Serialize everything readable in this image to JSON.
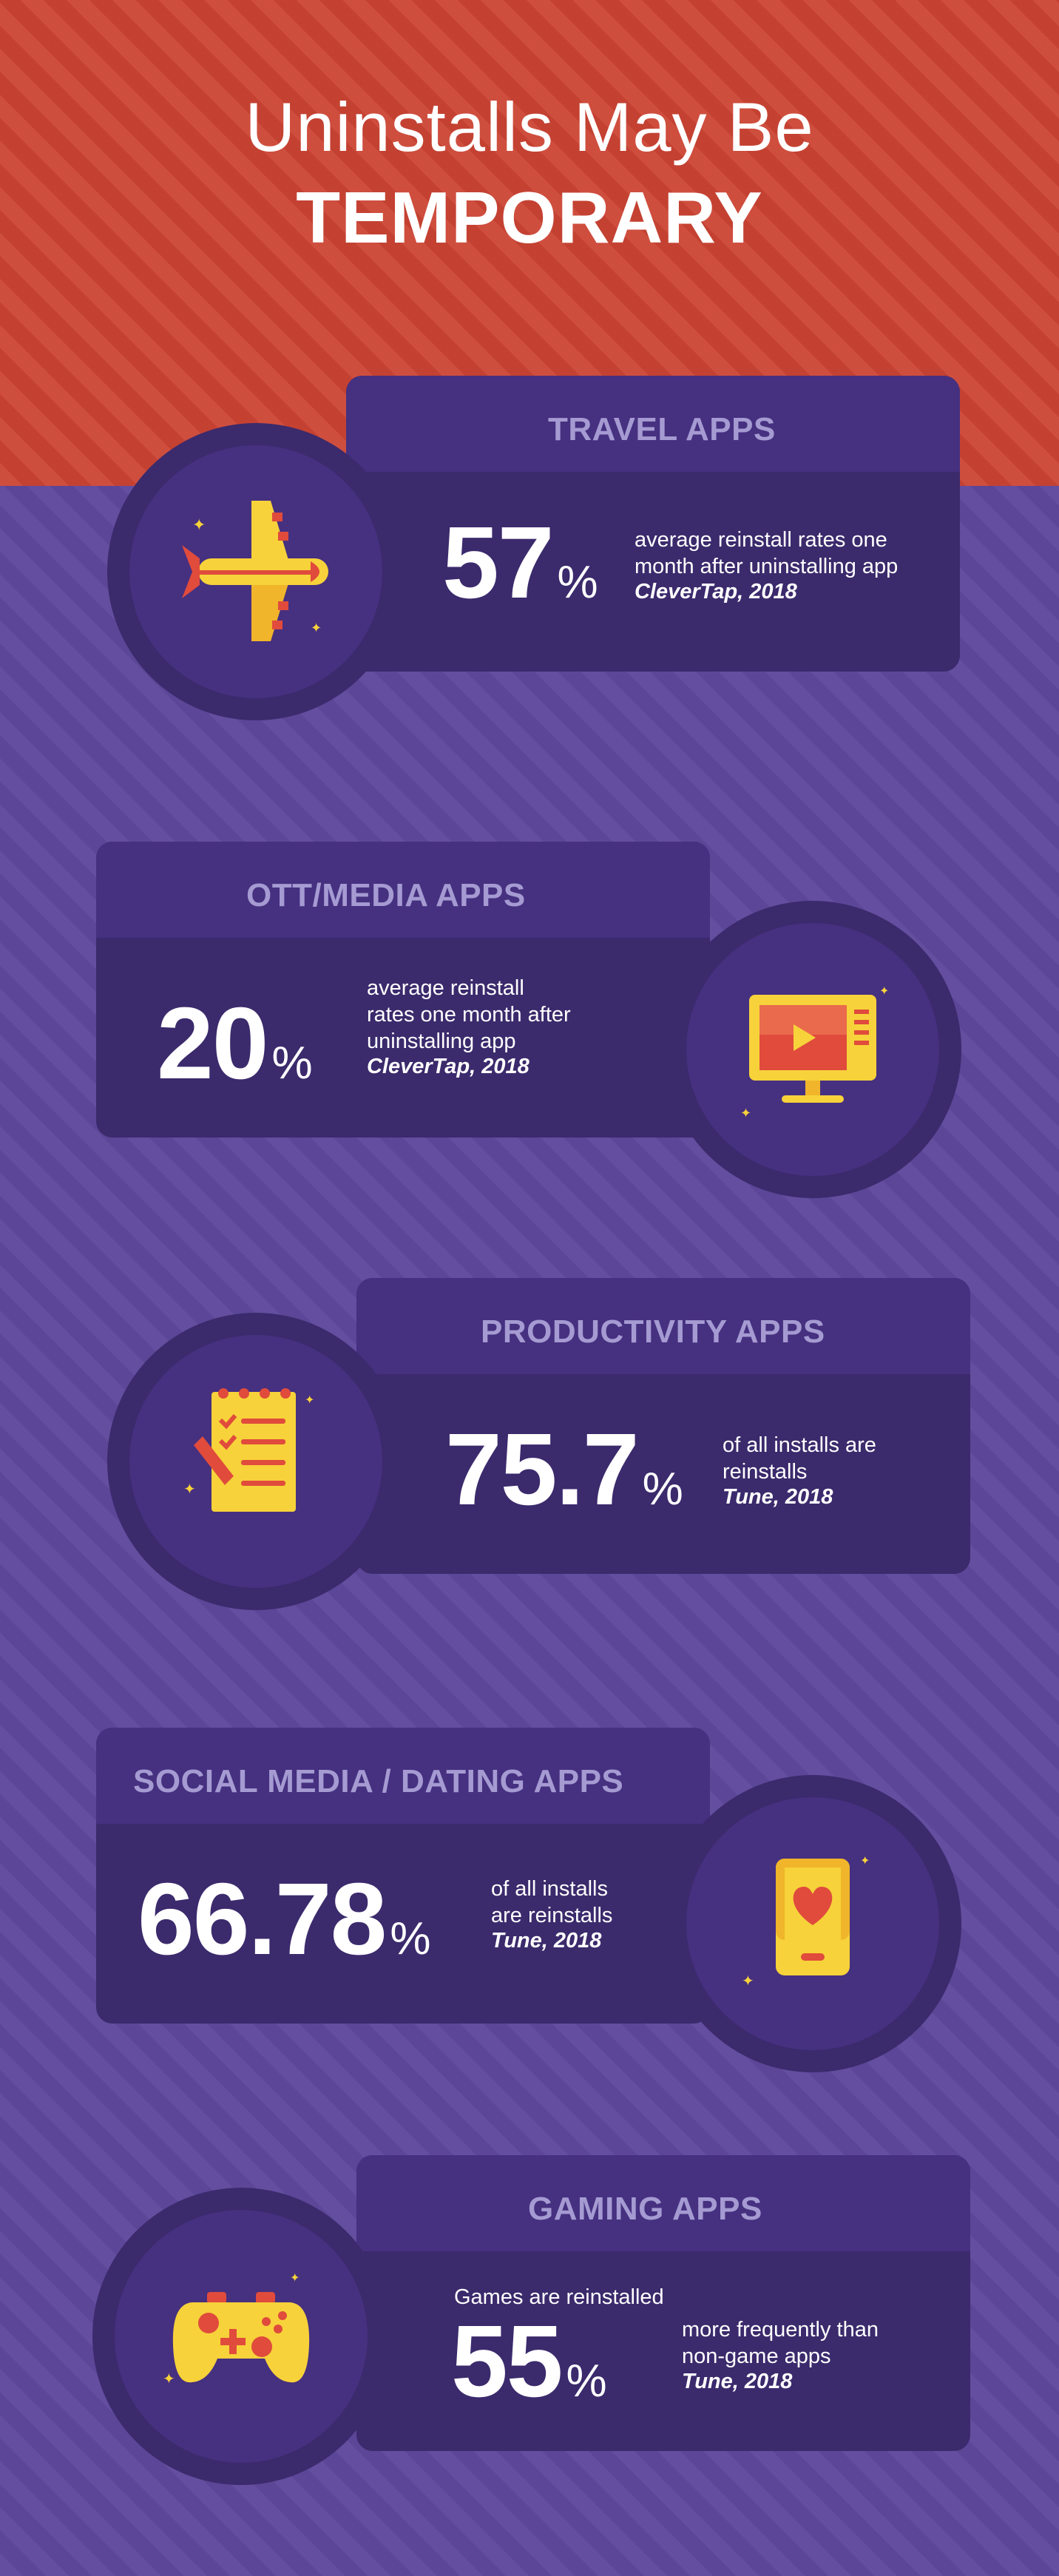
{
  "title": {
    "line1": "Uninstalls May Be",
    "line2": "TEMPORARY"
  },
  "colors": {
    "header_bg": "#cc4434",
    "page_bg": "#5e489c",
    "card_bg": "#3b2a6c",
    "card_header_bg": "#463080",
    "heading_text": "#a59bd2",
    "icon_yellow": "#f7d23a",
    "icon_red": "#e04b3c"
  },
  "sections": [
    {
      "heading": "TRAVEL APPS",
      "value": "57",
      "unit": "%",
      "desc_lines": [
        "average reinstall rates one",
        "month after uninstalling app"
      ],
      "source": "CleverTap, 2018",
      "icon": "airplane-icon"
    },
    {
      "heading": "OTT/MEDIA APPS",
      "value": "20",
      "unit": "%",
      "desc_lines": [
        "average reinstall",
        "rates one month after",
        "uninstalling app"
      ],
      "source": "CleverTap, 2018",
      "icon": "tv-play-icon"
    },
    {
      "heading": "PRODUCTIVITY APPS",
      "value": "75.7",
      "unit": "%",
      "desc_lines": [
        "of all installs are",
        "reinstalls"
      ],
      "source": "Tune, 2018",
      "icon": "checklist-notepad-icon"
    },
    {
      "heading": "SOCIAL MEDIA / DATING APPS",
      "value": "66.78",
      "unit": "%",
      "desc_lines": [
        "of all installs",
        "are reinstalls"
      ],
      "source": "Tune, 2018",
      "icon": "phone-heart-icon"
    },
    {
      "heading": "GAMING APPS",
      "prefix": "Games are reinstalled",
      "value": "55",
      "unit": "%",
      "desc_lines": [
        "more frequently than",
        "non-game apps"
      ],
      "source": "Tune, 2018",
      "icon": "game-controller-icon"
    }
  ]
}
